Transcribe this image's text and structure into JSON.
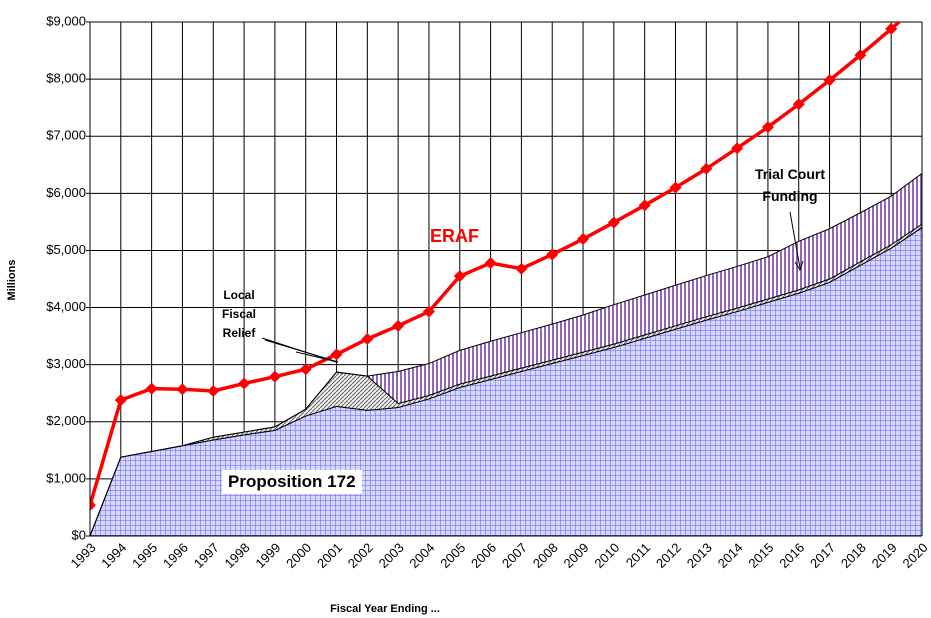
{
  "chart_data": {
    "type": "area",
    "y_label": "Millions",
    "x_label": "Fiscal Year Ending ...",
    "categories": [
      "1993",
      "1994",
      "1995",
      "1996",
      "1997",
      "1998",
      "1999",
      "2000",
      "2001",
      "2002",
      "2003",
      "2004",
      "2005",
      "2006",
      "2007",
      "2008",
      "2009",
      "2010",
      "2011",
      "2012",
      "2013",
      "2014",
      "2015",
      "2016",
      "2017",
      "2018",
      "2019",
      "2020"
    ],
    "series": [
      {
        "name": "Proposition 172",
        "type": "area",
        "color": "#4040ff",
        "values": [
          0,
          1380,
          1480,
          1580,
          1680,
          1770,
          1850,
          2100,
          2270,
          2200,
          2250,
          2400,
          2600,
          2740,
          2880,
          3020,
          3160,
          3300,
          3460,
          3620,
          3780,
          3930,
          4090,
          4250,
          4440,
          4740,
          5040,
          5400
        ]
      },
      {
        "name": "Local Fiscal Relief",
        "type": "area",
        "color": "#808080",
        "values": [
          0,
          0,
          0,
          0,
          50,
          50,
          60,
          120,
          600,
          600,
          70,
          60,
          60,
          60,
          60,
          60,
          60,
          60,
          60,
          60,
          60,
          60,
          60,
          60,
          60,
          60,
          60,
          60
        ]
      },
      {
        "name": "Trial Court Funding",
        "type": "area",
        "color": "#7030a0",
        "values": [
          0,
          0,
          0,
          0,
          0,
          0,
          0,
          0,
          0,
          0,
          560,
          560,
          590,
          610,
          620,
          630,
          650,
          690,
          700,
          710,
          720,
          730,
          740,
          850,
          880,
          860,
          850,
          890
        ]
      },
      {
        "name": "ERAF",
        "type": "line",
        "color": "#ff0000",
        "values": [
          540,
          2380,
          2580,
          2570,
          2540,
          2670,
          2790,
          2920,
          3180,
          3450,
          3680,
          3930,
          4550,
          4780,
          4680,
          4930,
          5200,
          5490,
          5790,
          6100,
          6430,
          6790,
          7160,
          7560,
          7980,
          8420,
          8880,
          9350
        ]
      }
    ],
    "ylim": [
      0,
      9000
    ],
    "yticks": [
      {
        "value": 0,
        "label": "$0"
      },
      {
        "value": 1000,
        "label": "$1,000"
      },
      {
        "value": 2000,
        "label": "$2,000"
      },
      {
        "value": 3000,
        "label": "$3,000"
      },
      {
        "value": 4000,
        "label": "$4,000"
      },
      {
        "value": 5000,
        "label": "$5,000"
      },
      {
        "value": 6000,
        "label": "$6,000"
      },
      {
        "value": 7000,
        "label": "$7,000"
      },
      {
        "value": 8000,
        "label": "$8,000"
      },
      {
        "value": 9000,
        "label": "$9,000"
      }
    ],
    "grid": true
  }
}
